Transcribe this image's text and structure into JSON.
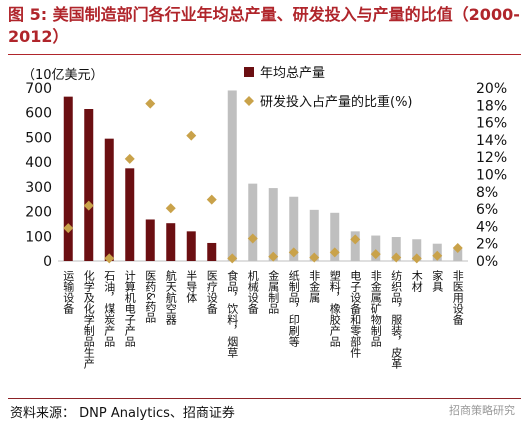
{
  "title": "图 5: 美国制造部门各行业年均总产量、研发投入与产量的比值（2000-2012）",
  "source": "资料来源： DNP Analytics、招商证券",
  "watermark": "招商策略研究",
  "colors": {
    "title": "#b0252b",
    "bar_top": "#6b0f12",
    "bar_other": "#bfbfbf",
    "marker": "#c9a24a"
  },
  "chart_data": {
    "type": "bar",
    "unit_label": "（10亿美元）",
    "categories": [
      "运输设备",
      "化学及化学制品生产",
      "石油，煤炭产品",
      "计算机电子产品",
      "医药&药品",
      "航天航空器",
      "半导体",
      "医疗设备",
      "食品，饮料，烟草",
      "机械设备",
      "金属制品",
      "纸制品，印刷等",
      "非金属",
      "塑料，橡胶产品",
      "电子设备和零部件",
      "非金属矿物制品",
      "纺织品，服装，皮革",
      "木材",
      "家具",
      "非医用设备"
    ],
    "highlight_count": 8,
    "series": [
      {
        "name": "年均总产量",
        "axis": "left",
        "values": [
          665,
          615,
          495,
          375,
          168,
          153,
          120,
          73,
          690,
          313,
          295,
          260,
          207,
          195,
          120,
          103,
          97,
          88,
          70,
          48
        ]
      },
      {
        "name": "研发投入占产量的比重(%)",
        "axis": "right",
        "values": [
          3.8,
          6.4,
          0.3,
          11.8,
          18.2,
          6.1,
          14.5,
          7.1,
          0.3,
          2.6,
          0.5,
          1.0,
          0.4,
          1.0,
          2.5,
          0.8,
          0.4,
          0.3,
          0.6,
          1.5
        ]
      }
    ],
    "y_left": {
      "min": 0,
      "max": 700,
      "ticks": [
        0,
        100,
        200,
        300,
        400,
        500,
        600,
        700
      ]
    },
    "y_right": {
      "min": 0,
      "max": 20,
      "ticks": [
        "0%",
        "2%",
        "4%",
        "6%",
        "8%",
        "10%",
        "12%",
        "14%",
        "16%",
        "18%",
        "20%"
      ]
    },
    "grid": false,
    "legend_position": "top-right"
  }
}
